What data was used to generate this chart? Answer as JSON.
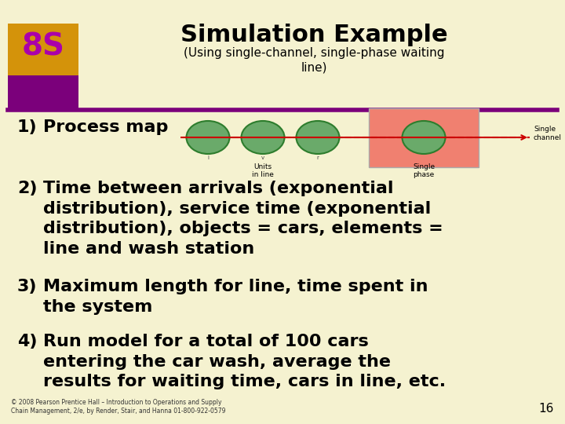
{
  "title": "Simulation Example",
  "subtitle": "(Using single-channel, single-phase waiting\nline)",
  "bg_color": "#f5f2d0",
  "title_color": "#000000",
  "header_bar_color": "#7b007b",
  "logo_bg_top": "#d4930a",
  "logo_bg_bottom": "#7b007b",
  "logo_text": "8S",
  "logo_text_color": "#aa00aa",
  "item1_label": "1)",
  "item1_text": "Process map",
  "item2_label": "2)",
  "item2_text": "Time between arrivals (exponential\ndistribution), service time (exponential\ndistribution), objects = cars, elements =\nline and wash station",
  "item3_label": "3)",
  "item3_text": "Maximum length for line, time spent in\nthe system",
  "item4_label": "4)",
  "item4_text": "Run model for a total of 100 cars\nentering the car wash, average the\nresults for waiting time, cars in line, etc.",
  "footer_text": "© 2008 Pearson Prentice Hall – Introduction to Operations and Supply\nChain Management, 2/e, by Render, Stair, and Hanna 01-800-922-0579",
  "page_number": "16",
  "oval_color": "#6aaa6a",
  "oval_edge_color": "#2d7d2d",
  "box_color": "#f08070",
  "arrow_color": "#cc0000",
  "label_units": "Units\nin line",
  "label_single_phase": "Single\nphase",
  "label_single_channel": "Single\nchannel"
}
